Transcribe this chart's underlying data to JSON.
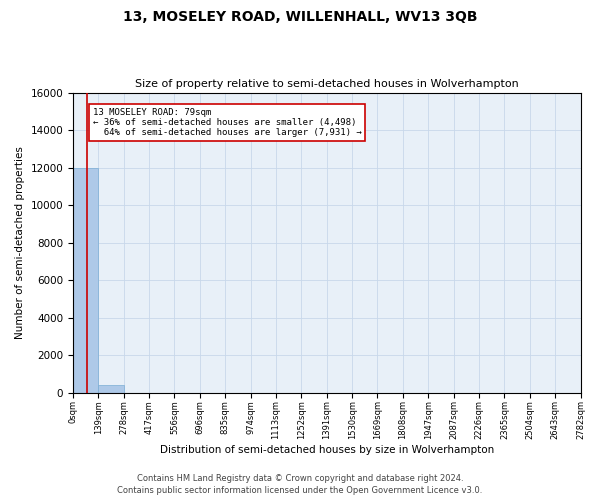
{
  "title": "13, MOSELEY ROAD, WILLENHALL, WV13 3QB",
  "subtitle": "Size of property relative to semi-detached houses in Wolverhampton",
  "xlabel": "Distribution of semi-detached houses by size in Wolverhampton",
  "ylabel": "Number of semi-detached properties",
  "footnote1": "Contains HM Land Registry data © Crown copyright and database right 2024.",
  "footnote2": "Contains public sector information licensed under the Open Government Licence v3.0.",
  "property_size": 79,
  "property_label": "13 MOSELEY ROAD: 79sqm",
  "pct_smaller": 36,
  "pct_larger": 64,
  "count_smaller": 4498,
  "count_larger": 7931,
  "bar_color": "#aec9e8",
  "bar_edge_color": "#7aadd4",
  "marker_color": "#cc0000",
  "annotation_box_color": "#cc0000",
  "grid_color": "#c8d8ea",
  "bg_color": "#e8f0f8",
  "bin_edges": [
    0,
    139,
    278,
    417,
    556,
    696,
    835,
    974,
    1113,
    1252,
    1391,
    1530,
    1669,
    1808,
    1947,
    2087,
    2226,
    2365,
    2504,
    2643,
    2782
  ],
  "bin_counts": [
    12000,
    430,
    0,
    0,
    0,
    0,
    0,
    0,
    0,
    0,
    0,
    0,
    0,
    0,
    0,
    0,
    0,
    0,
    0,
    0
  ],
  "ylim": [
    0,
    16000
  ],
  "yticks": [
    0,
    2000,
    4000,
    6000,
    8000,
    10000,
    12000,
    14000,
    16000
  ]
}
